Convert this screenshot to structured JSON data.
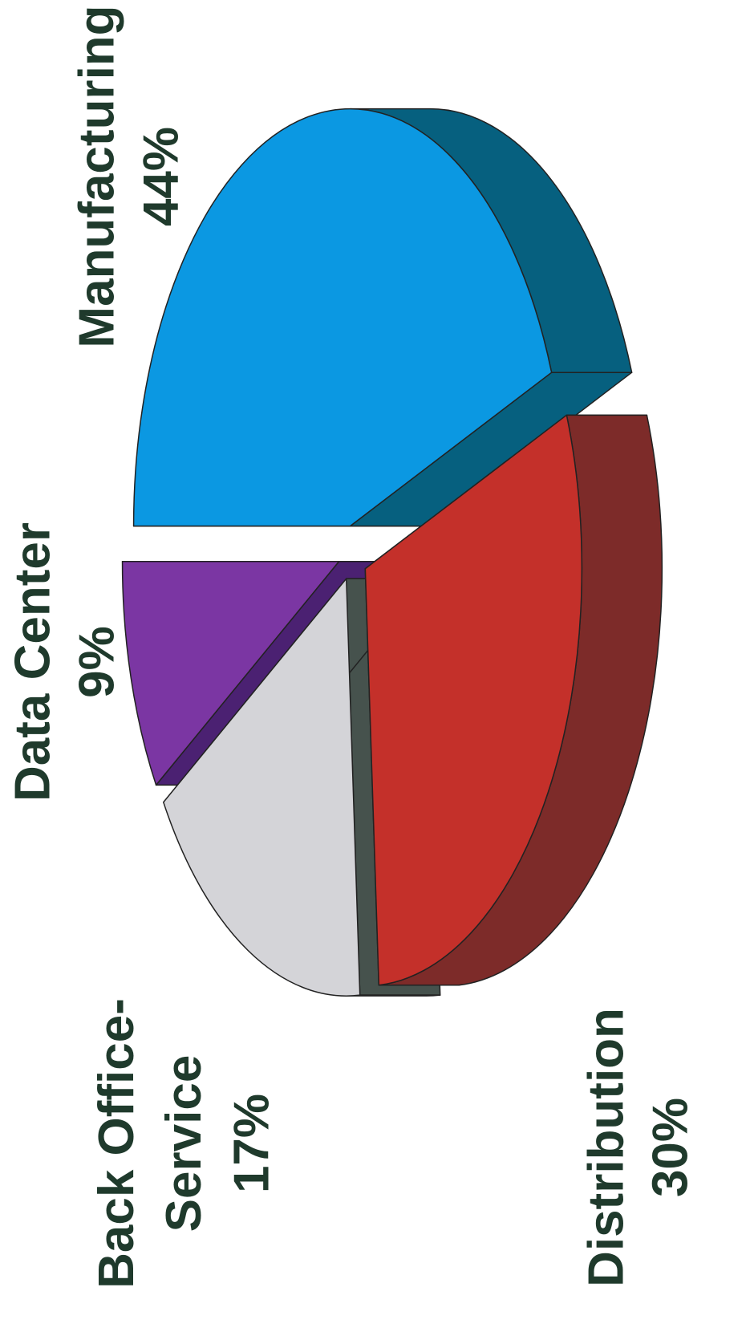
{
  "chart_data": {
    "type": "pie3d",
    "categories": [
      "Manufacturing",
      "Distribution",
      "Back Office-Service",
      "Data Center"
    ],
    "values": [
      44,
      30,
      17,
      9
    ],
    "value_labels": [
      "44%",
      "30%",
      "17%",
      "9%"
    ],
    "colors": [
      "#0b98e2",
      "#c4302a",
      "#d4d4d8",
      "#7b36a3"
    ],
    "side_colors": [
      "#06607f",
      "#7d2b29",
      "#46524d",
      "#4b2172"
    ]
  }
}
